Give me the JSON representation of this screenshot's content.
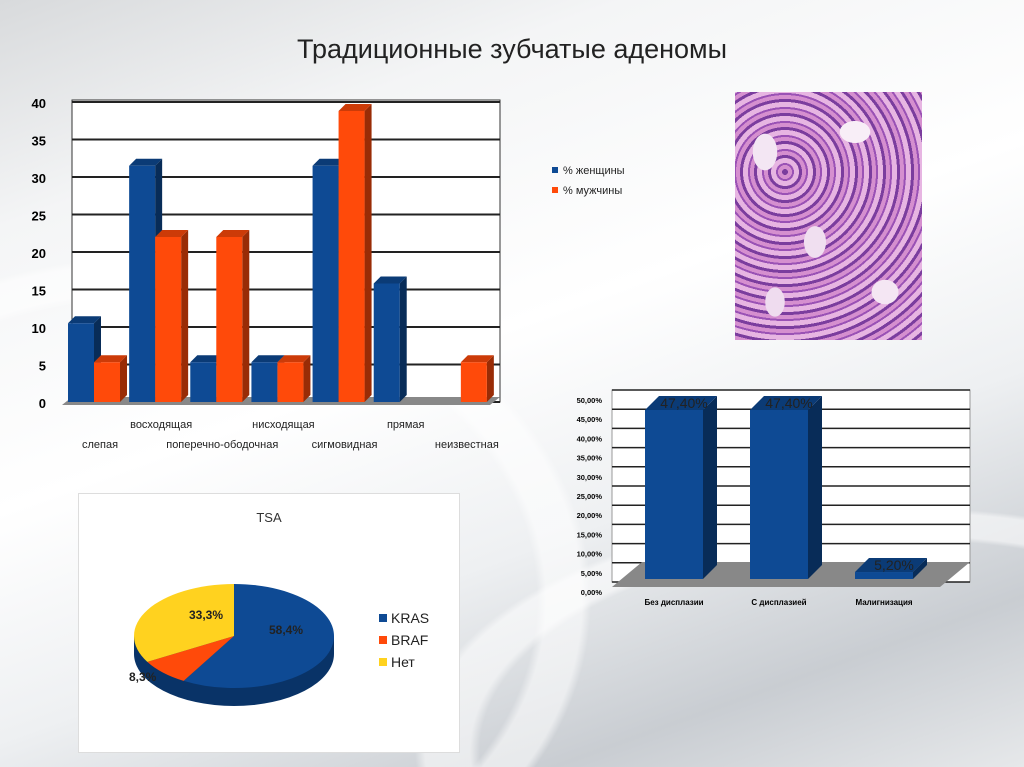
{
  "title": "Традиционные зубчатые аденомы",
  "chart_data": [
    {
      "type": "bar",
      "title": "",
      "categories": [
        "слепая",
        "восходящая",
        "поперечно-ободочная",
        "нисходящая",
        "сигмовидная",
        "прямая",
        "неизвестная"
      ],
      "series": [
        {
          "name": "% женщины",
          "color": "#0e4a94",
          "values": [
            10.5,
            31.5,
            5.3,
            5.3,
            31.5,
            15.8,
            0
          ]
        },
        {
          "name": "% мужчины",
          "color": "#ff4a0a",
          "values": [
            5.3,
            22,
            22,
            5.3,
            38.8,
            0,
            5.3
          ]
        }
      ],
      "yticks": [
        "0",
        "5",
        "10",
        "15",
        "20",
        "25",
        "30",
        "35",
        "40"
      ],
      "ylim": [
        0,
        40
      ],
      "legend": "right",
      "grid": true
    },
    {
      "type": "bar",
      "title": "",
      "categories": [
        "Без дисплазии",
        "С дисплазией",
        "Малигнизация"
      ],
      "series": [
        {
          "name": "",
          "color": "#0e4a94",
          "values": [
            47.4,
            47.4,
            5.2
          ]
        }
      ],
      "data_labels": [
        "47,40%",
        "47,40%",
        "5,20%"
      ],
      "yticks": [
        "0,00%",
        "5,00%",
        "10,00%",
        "15,00%",
        "20,00%",
        "25,00%",
        "30,00%",
        "35,00%",
        "40,00%",
        "45,00%",
        "50,00%"
      ],
      "ylim": [
        0,
        50
      ],
      "grid": true
    },
    {
      "type": "pie",
      "title": "TSA",
      "categories": [
        "KRAS",
        "BRAF",
        "Нет"
      ],
      "values": [
        58.4,
        8.3,
        33.3
      ],
      "data_labels": [
        "58,4%",
        "8,3%",
        "33,3%"
      ],
      "colors": [
        "#0e4a94",
        "#ff4a0a",
        "#ffd21f"
      ],
      "legend": "right"
    }
  ]
}
